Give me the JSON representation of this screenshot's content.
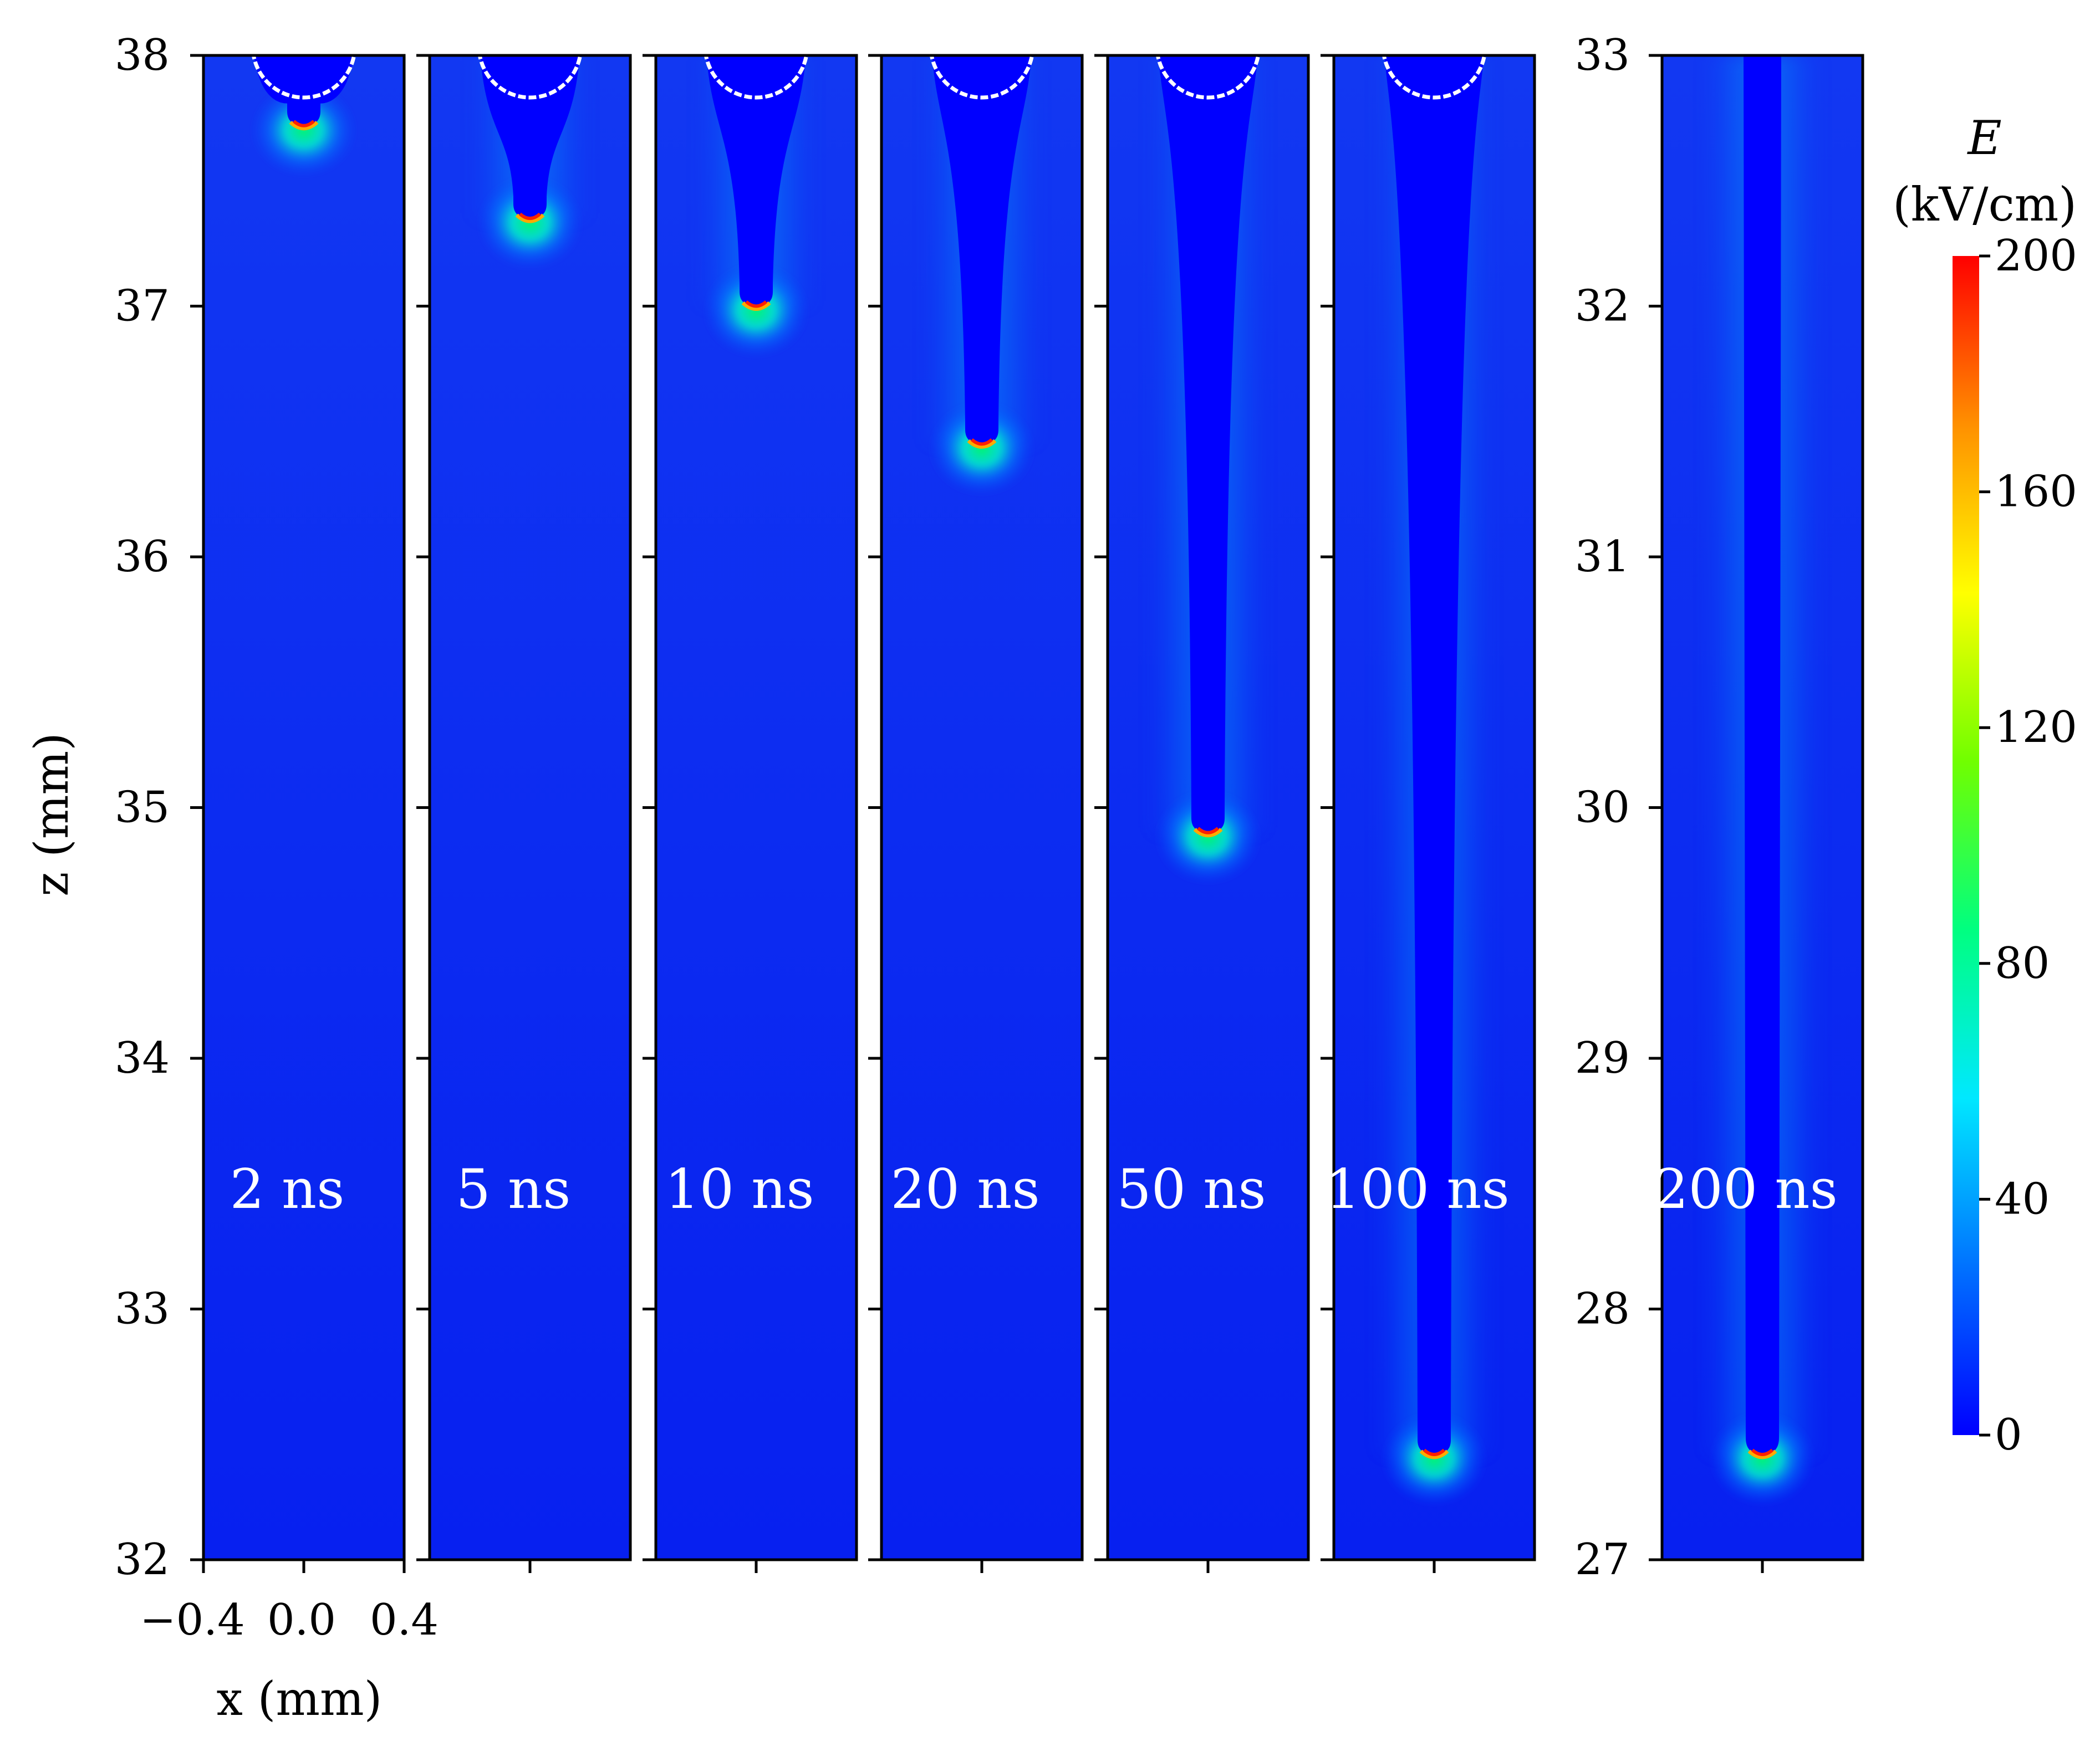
{
  "chart_data": {
    "type": "heatmap",
    "description_quantity": "electric field magnitude",
    "panels_left": {
      "times": [
        "2 ns",
        "5 ns",
        "10 ns",
        "20 ns",
        "50 ns",
        "100 ns"
      ],
      "ylim": [
        32,
        38
      ],
      "yticks": [
        "32",
        "33",
        "34",
        "35",
        "36",
        "37",
        "38"
      ],
      "xlim": [
        -0.4,
        0.4
      ],
      "xticks": [
        "−0.4",
        "0.0",
        "0.4"
      ],
      "head_z": [
        37.72,
        37.35,
        37.0,
        36.45,
        34.9,
        32.42
      ],
      "ylabel": "z (mm)",
      "xlabel": "x (mm)"
    },
    "panel_right": {
      "time": "200 ns",
      "ylim": [
        27,
        33
      ],
      "yticks": [
        "27",
        "28",
        "29",
        "30",
        "31",
        "32",
        "33"
      ],
      "head_z": 27.42
    },
    "colorbar": {
      "label_symbol": "E",
      "label_unit": "(kV/cm)",
      "min": 0,
      "max": 200,
      "ticks": [
        "0",
        "40",
        "80",
        "120",
        "160",
        "200"
      ],
      "colors": [
        "#0000ff",
        "#0072ff",
        "#00e8ff",
        "#00ff80",
        "#70ff00",
        "#ffff00",
        "#ff9000",
        "#ff0000"
      ]
    },
    "background_color": "#0a2af0",
    "channel_color": "#0000ff",
    "electrode_outline_color": "#ffffff"
  }
}
